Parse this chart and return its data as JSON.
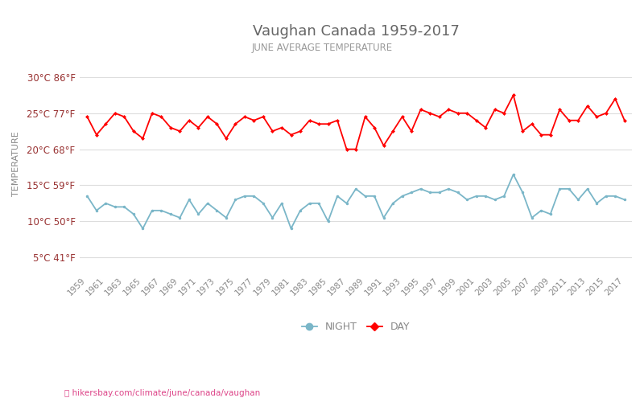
{
  "title": "Vaughan Canada 1959-2017",
  "subtitle": "JUNE AVERAGE TEMPERATURE",
  "ylabel": "TEMPERATURE",
  "years": [
    1959,
    1960,
    1961,
    1962,
    1963,
    1964,
    1965,
    1966,
    1967,
    1968,
    1969,
    1970,
    1971,
    1972,
    1973,
    1974,
    1975,
    1976,
    1977,
    1978,
    1979,
    1980,
    1981,
    1982,
    1983,
    1984,
    1985,
    1986,
    1987,
    1988,
    1989,
    1990,
    1991,
    1992,
    1993,
    1994,
    1995,
    1996,
    1997,
    1998,
    1999,
    2000,
    2001,
    2002,
    2003,
    2004,
    2005,
    2006,
    2007,
    2008,
    2009,
    2010,
    2011,
    2012,
    2013,
    2014,
    2015,
    2016,
    2017
  ],
  "day_temps": [
    24.5,
    22.0,
    23.5,
    25.0,
    24.5,
    22.5,
    21.5,
    25.0,
    24.5,
    23.0,
    22.5,
    24.0,
    23.0,
    24.5,
    23.5,
    21.5,
    23.5,
    24.5,
    24.0,
    24.5,
    22.5,
    23.0,
    22.0,
    22.5,
    24.0,
    23.5,
    23.5,
    24.0,
    20.0,
    20.0,
    24.5,
    23.0,
    20.5,
    22.5,
    24.5,
    22.5,
    25.5,
    25.0,
    24.5,
    25.5,
    25.0,
    25.0,
    24.0,
    23.0,
    25.5,
    25.0,
    27.5,
    22.5,
    23.5,
    22.0,
    22.0,
    25.5,
    24.0,
    24.0,
    26.0,
    24.5,
    25.0,
    27.0,
    24.0
  ],
  "night_temps": [
    13.5,
    11.5,
    12.5,
    12.0,
    12.0,
    11.0,
    9.0,
    11.5,
    11.5,
    11.0,
    10.5,
    13.0,
    11.0,
    12.5,
    11.5,
    10.5,
    13.0,
    13.5,
    13.5,
    12.5,
    10.5,
    12.5,
    9.0,
    11.5,
    12.5,
    12.5,
    10.0,
    13.5,
    12.5,
    14.5,
    13.5,
    13.5,
    10.5,
    12.5,
    13.5,
    14.0,
    14.5,
    14.0,
    14.0,
    14.5,
    14.0,
    13.0,
    13.5,
    13.5,
    13.0,
    13.5,
    16.5,
    14.0,
    10.5,
    11.5,
    11.0,
    14.5,
    14.5,
    13.0,
    14.5,
    12.5,
    13.5,
    13.5,
    13.0
  ],
  "day_color": "#ff0000",
  "night_color": "#7ab6c8",
  "background_color": "#ffffff",
  "grid_color": "#dddddd",
  "yticks_c": [
    5,
    10,
    15,
    20,
    25,
    30
  ],
  "yticks_f": [
    41,
    50,
    59,
    68,
    77,
    86
  ],
  "ylim": [
    3,
    33
  ],
  "title_color": "#666666",
  "subtitle_color": "#999999",
  "ylabel_color": "#888888",
  "tick_color": "#993333",
  "xtick_color": "#888888",
  "url_text": "hikersbay.com/climate/june/canada/vaughan",
  "url_color": "#dd4488",
  "legend_night": "NIGHT",
  "legend_day": "DAY"
}
